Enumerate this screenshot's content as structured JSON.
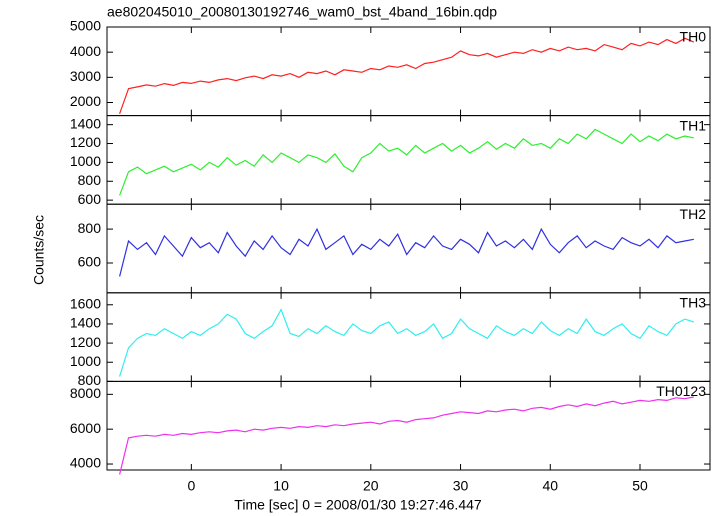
{
  "chart_data": {
    "type": "line",
    "title": "ae802045010_20080130192746_wam0_bst_4band_16bin.qdp",
    "xlabel": "Time [sec] 0 = 2008/01/30 19:27:46.447",
    "ylabel": "Counts/sec",
    "xlim": [
      -9.4,
      57.8
    ],
    "xticks": [
      0,
      10,
      20,
      30,
      40,
      50
    ],
    "x": [
      -8,
      -7,
      -6,
      -5,
      -4,
      -3,
      -2,
      -1,
      0,
      1,
      2,
      3,
      4,
      5,
      6,
      7,
      8,
      9,
      10,
      11,
      12,
      13,
      14,
      15,
      16,
      17,
      18,
      19,
      20,
      21,
      22,
      23,
      24,
      25,
      26,
      27,
      28,
      29,
      30,
      31,
      32,
      33,
      34,
      35,
      36,
      37,
      38,
      39,
      40,
      41,
      42,
      43,
      44,
      45,
      46,
      47,
      48,
      49,
      50,
      51,
      52,
      53,
      54,
      55,
      56
    ],
    "series": [
      {
        "name": "TH0",
        "color": "#ff2020",
        "ylim": [
          1480,
          5000
        ],
        "yticks": [
          2000,
          3000,
          4000,
          5000
        ],
        "values": [
          1550,
          2550,
          2620,
          2700,
          2650,
          2750,
          2680,
          2800,
          2760,
          2850,
          2800,
          2900,
          2950,
          2870,
          2980,
          3050,
          2950,
          3100,
          3050,
          3150,
          3000,
          3200,
          3150,
          3250,
          3100,
          3300,
          3250,
          3200,
          3350,
          3300,
          3450,
          3400,
          3500,
          3350,
          3550,
          3600,
          3700,
          3800,
          4050,
          3900,
          3850,
          3950,
          3800,
          3900,
          4000,
          3950,
          4100,
          4000,
          4150,
          4050,
          4200,
          4100,
          4150,
          4050,
          4300,
          4200,
          4100,
          4350,
          4250,
          4400,
          4300,
          4500,
          4350,
          4550,
          4400
        ]
      },
      {
        "name": "TH1",
        "color": "#30ee30",
        "ylim": [
          557,
          1496
        ],
        "yticks": [
          600,
          800,
          1000,
          1200,
          1400
        ],
        "values": [
          650,
          900,
          950,
          880,
          920,
          960,
          900,
          940,
          980,
          920,
          1000,
          950,
          1050,
          970,
          1020,
          960,
          1080,
          1000,
          1100,
          1050,
          1000,
          1080,
          1050,
          1000,
          1090,
          960,
          900,
          1050,
          1100,
          1200,
          1120,
          1150,
          1080,
          1180,
          1100,
          1150,
          1200,
          1120,
          1180,
          1100,
          1150,
          1220,
          1140,
          1200,
          1150,
          1250,
          1180,
          1200,
          1150,
          1250,
          1200,
          1300,
          1250,
          1350,
          1300,
          1250,
          1200,
          1300,
          1220,
          1280,
          1230,
          1300,
          1250,
          1280,
          1260
        ]
      },
      {
        "name": "TH2",
        "color": "#3030e0",
        "ylim": [
          424,
          947
        ],
        "yticks": [
          600,
          800
        ],
        "values": [
          520,
          730,
          680,
          720,
          650,
          760,
          700,
          640,
          750,
          690,
          720,
          660,
          780,
          700,
          640,
          730,
          680,
          760,
          690,
          650,
          740,
          700,
          800,
          680,
          720,
          760,
          650,
          710,
          680,
          740,
          700,
          770,
          650,
          720,
          690,
          760,
          700,
          680,
          740,
          710,
          660,
          780,
          700,
          730,
          690,
          740,
          680,
          800,
          710,
          660,
          720,
          760,
          690,
          730,
          700,
          680,
          750,
          720,
          700,
          740,
          690,
          760,
          720,
          730,
          740
        ]
      },
      {
        "name": "TH3",
        "color": "#30eeee",
        "ylim": [
          800,
          1725
        ],
        "yticks": [
          800,
          1000,
          1200,
          1400,
          1600
        ],
        "values": [
          850,
          1150,
          1250,
          1300,
          1280,
          1350,
          1300,
          1250,
          1320,
          1280,
          1350,
          1400,
          1500,
          1450,
          1300,
          1250,
          1320,
          1380,
          1550,
          1300,
          1270,
          1350,
          1300,
          1380,
          1320,
          1280,
          1400,
          1330,
          1300,
          1380,
          1420,
          1300,
          1350,
          1280,
          1320,
          1400,
          1250,
          1300,
          1450,
          1350,
          1300,
          1250,
          1380,
          1320,
          1280,
          1350,
          1300,
          1420,
          1330,
          1280,
          1350,
          1300,
          1450,
          1320,
          1280,
          1350,
          1400,
          1300,
          1250,
          1380,
          1320,
          1280,
          1400,
          1450,
          1420
        ]
      },
      {
        "name": "TH0123",
        "color": "#ee30ee",
        "ylim": [
          3657,
          8743
        ],
        "yticks": [
          4000,
          6000,
          8000
        ],
        "values": [
          3400,
          5500,
          5600,
          5650,
          5600,
          5700,
          5650,
          5750,
          5700,
          5800,
          5850,
          5800,
          5900,
          5950,
          5850,
          6000,
          5950,
          6050,
          6100,
          6050,
          6150,
          6100,
          6200,
          6150,
          6250,
          6200,
          6300,
          6350,
          6400,
          6300,
          6450,
          6500,
          6400,
          6550,
          6600,
          6650,
          6800,
          6900,
          7000,
          6950,
          6900,
          7050,
          7000,
          7100,
          7150,
          7050,
          7200,
          7250,
          7150,
          7300,
          7400,
          7300,
          7450,
          7350,
          7500,
          7600,
          7450,
          7550,
          7650,
          7600,
          7700,
          7650,
          7800,
          7750,
          7850
        ]
      }
    ]
  }
}
